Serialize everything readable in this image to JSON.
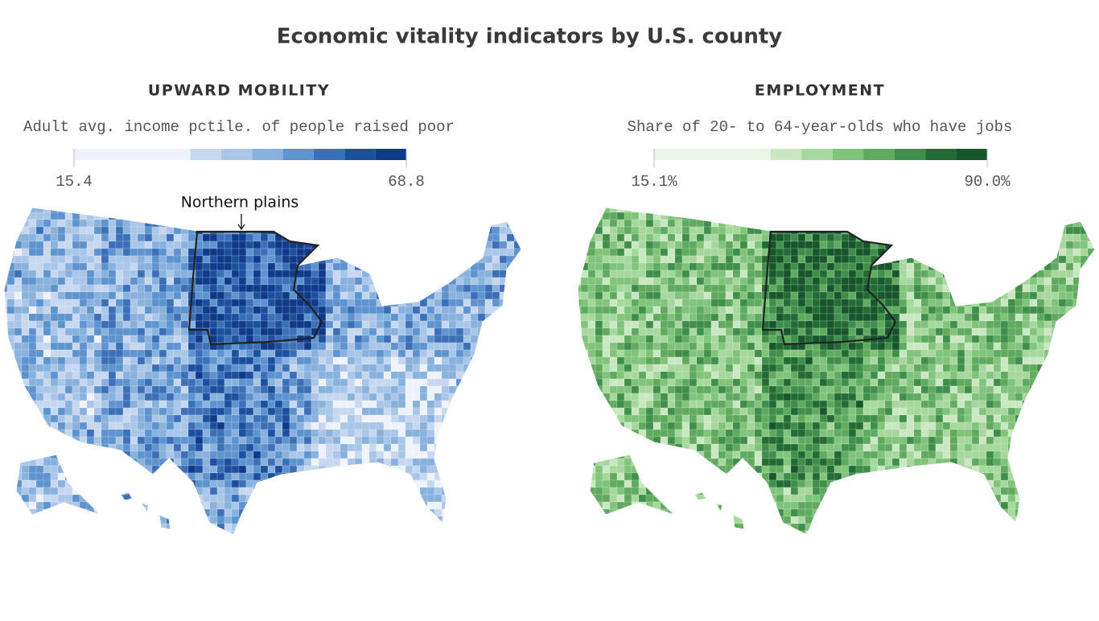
{
  "title": "Economic vitality indicators by U.S. county",
  "panels": [
    {
      "title": "UPWARD MOBILITY",
      "subtitle": "Adult avg. income pctile. of people raised poor",
      "legend": {
        "min": 15.4,
        "max": 68.8,
        "colors": [
          "#eef2fb",
          "#c6d7ef",
          "#a9c6e8",
          "#88b1de",
          "#5d93cf",
          "#3b70b8",
          "#1d4f9f",
          "#0f3a8a"
        ]
      },
      "annotation": "Northern plains"
    },
    {
      "title": "EMPLOYMENT",
      "subtitle": "Share of 20- to 64-year-olds who have jobs",
      "legend": {
        "min": {
          "value": 15.1,
          "label": "15.1%"
        },
        "max": {
          "value": 90.0,
          "label": "90.0%"
        },
        "colors": [
          "#eaf5e4",
          "#c9e7c0",
          "#a6d79c",
          "#80c37a",
          "#5faa5f",
          "#3f8f4b",
          "#236b35",
          "#17552a"
        ]
      }
    }
  ]
}
